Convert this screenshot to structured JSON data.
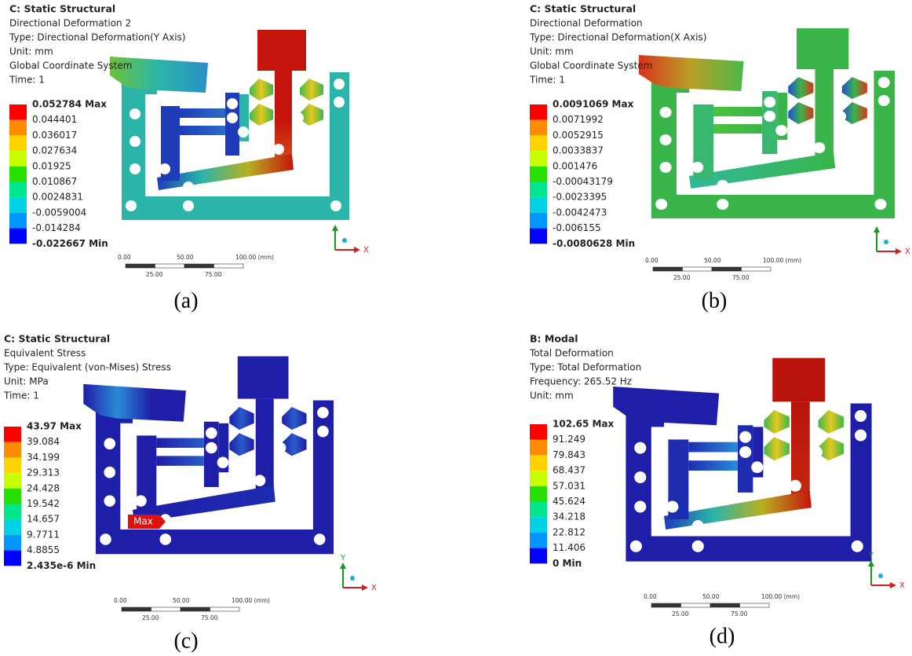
{
  "panels": [
    {
      "title": "C: Static Structural",
      "lines": [
        "Directional Deformation 2",
        "Type: Directional Deformation(Y Axis)",
        "Unit: mm",
        "Global Coordinate System",
        "Time: 1"
      ],
      "legend": [
        "0.052784 Max",
        "0.044401",
        "0.036017",
        "0.027634",
        "0.01925",
        "0.010867",
        "0.0024831",
        "-0.0059004",
        "-0.014284",
        "-0.022667 Min"
      ],
      "axes": [
        "X"
      ],
      "scale_top": [
        "0.00",
        "50.00",
        "100.00 (mm)"
      ],
      "scale_bottom": [
        "25.00",
        "75.00"
      ],
      "caption": "(a)"
    },
    {
      "title": "C: Static Structural",
      "lines": [
        "Directional Deformation",
        "Type: Directional Deformation(X Axis)",
        "Unit: mm",
        "Global Coordinate System",
        "Time: 1"
      ],
      "legend": [
        "0.0091069 Max",
        "0.0071992",
        "0.0052915",
        "0.0033837",
        "0.001476",
        "-0.00043179",
        "-0.0023395",
        "-0.0042473",
        "-0.006155",
        "-0.0080628 Min"
      ],
      "axes": [
        "X"
      ],
      "scale_top": [
        "0.00",
        "50.00",
        "100.00 (mm)"
      ],
      "scale_bottom": [
        "25.00",
        "75.00"
      ],
      "caption": "(b)"
    },
    {
      "title": "C: Static Structural",
      "lines": [
        "Equivalent Stress",
        "Type: Equivalent (von-Mises) Stress",
        "Unit: MPa",
        "Time: 1"
      ],
      "legend": [
        "43.97 Max",
        "39.084",
        "34.199",
        "29.313",
        "24.428",
        "19.542",
        "14.657",
        "9.7711",
        "4.8855",
        "2.435e-6 Min"
      ],
      "probe": "Max",
      "axes": [
        "X",
        "Y"
      ],
      "scale_top": [
        "0.00",
        "50.00",
        "100.00 (mm)"
      ],
      "scale_bottom": [
        "25.00",
        "75.00"
      ],
      "caption": "(c)"
    },
    {
      "title": "B: Modal",
      "lines": [
        "Total Deformation",
        "Type: Total Deformation",
        "Frequency: 265.52 Hz",
        "Unit: mm"
      ],
      "legend": [
        "102.65 Max",
        "91.249",
        "79.843",
        "68.437",
        "57.031",
        "45.624",
        "34.218",
        "22.812",
        "11.406",
        "0 Min"
      ],
      "axes": [
        "X",
        "Y"
      ],
      "scale_top": [
        "0.00",
        "50.00",
        "100.00 (mm)"
      ],
      "scale_bottom": [
        "25.00",
        "75.00"
      ],
      "caption": "(d)"
    }
  ]
}
